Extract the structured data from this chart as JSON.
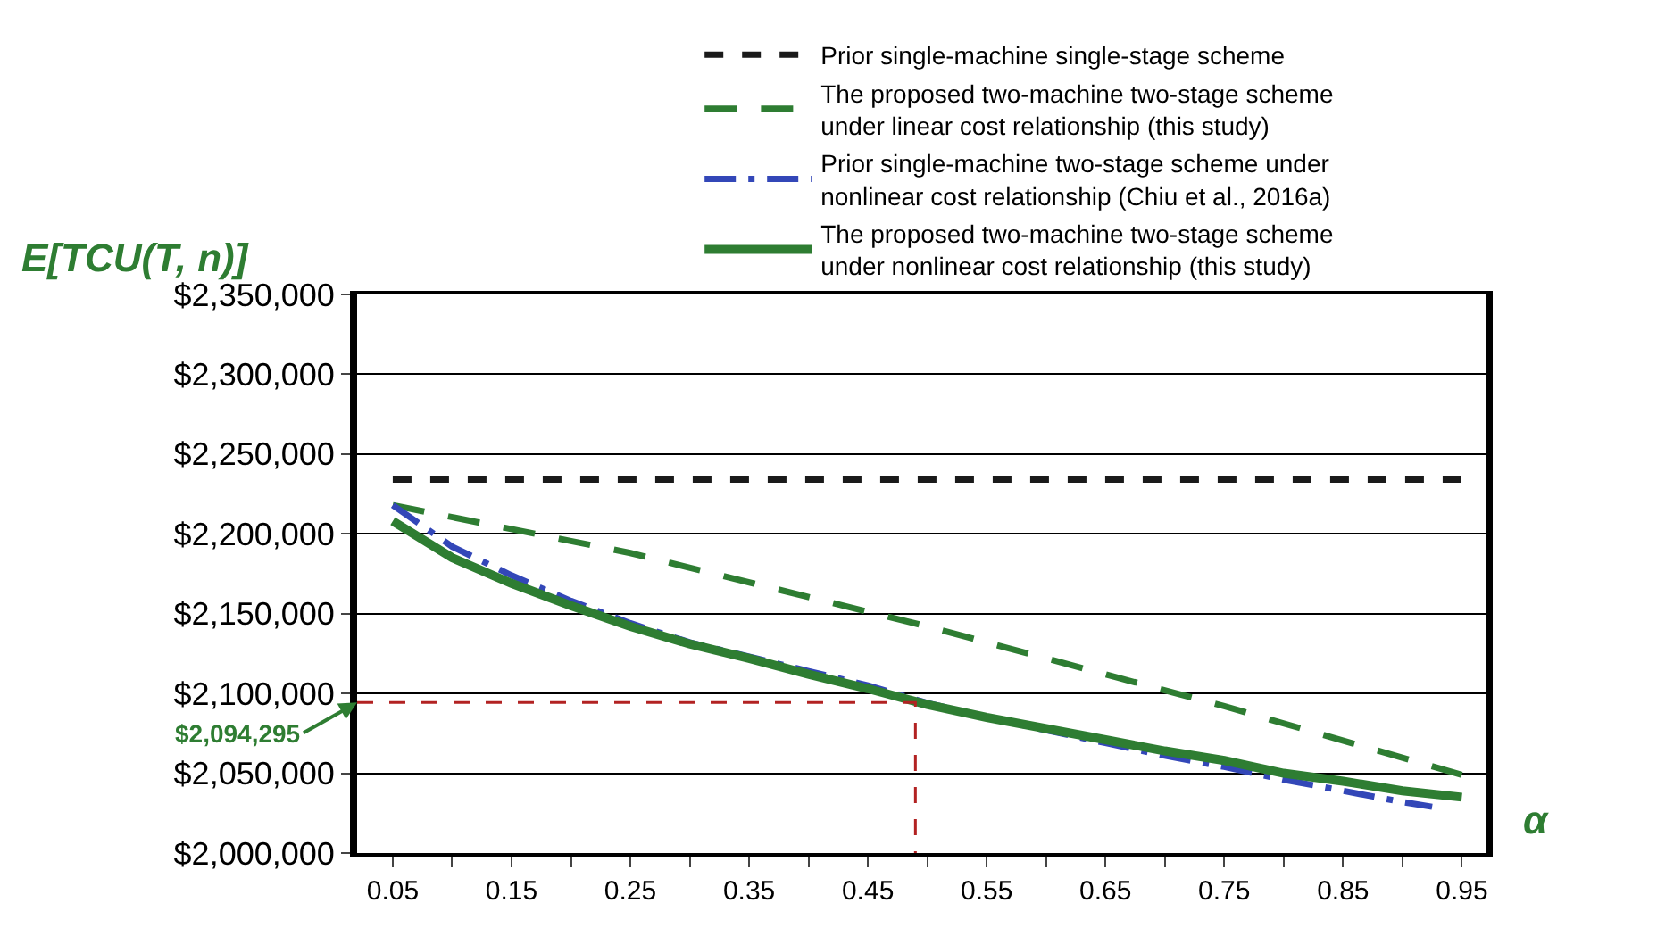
{
  "chart_data": {
    "type": "line",
    "ylabel": "E[TCU(T, n)]",
    "xlabel": "α",
    "x": [
      0.05,
      0.1,
      0.15,
      0.2,
      0.25,
      0.3,
      0.35,
      0.4,
      0.45,
      0.5,
      0.55,
      0.6,
      0.65,
      0.7,
      0.75,
      0.8,
      0.85,
      0.9,
      0.95
    ],
    "series": [
      {
        "name": "Prior single-machine single-stage scheme",
        "color": "#1a1a1a",
        "line_style": "dashed",
        "x": [
          0.05,
          0.95
        ],
        "values": [
          2234000,
          2234000
        ]
      },
      {
        "name": "The proposed two-machine two-stage scheme\nunder linear cost relationship (this study)",
        "color": "#2e7d32",
        "line_style": "longdash",
        "x": [
          0.05,
          0.25,
          0.5,
          0.75,
          0.95
        ],
        "values": [
          2218000,
          2188000,
          2142000,
          2092000,
          2049000
        ]
      },
      {
        "name": "Prior single-machine two-stage scheme under\nnonlinear cost relationship (Chiu et al., 2016a)",
        "color": "#3347b8",
        "line_style": "dashdot",
        "x": [
          0.05,
          0.1,
          0.15,
          0.2,
          0.25,
          0.3,
          0.35,
          0.4,
          0.45,
          0.5,
          0.55,
          0.6,
          0.65,
          0.7,
          0.75,
          0.8,
          0.85,
          0.9,
          0.925
        ],
        "values": [
          2218000,
          2192000,
          2174000,
          2158000,
          2144000,
          2132000,
          2123000,
          2114000,
          2105000,
          2094000,
          2085000,
          2077000,
          2069000,
          2061000,
          2054000,
          2046000,
          2039000,
          2032000,
          2029000
        ]
      },
      {
        "name": "The proposed two-machine two-stage scheme\nunder nonlinear cost relationship (this study)",
        "color": "#2e7d32",
        "line_style": "solid",
        "values": [
          2208000,
          2185000,
          2169000,
          2155000,
          2142000,
          2131000,
          2122000,
          2112000,
          2103000,
          2093000,
          2085000,
          2078000,
          2071000,
          2064000,
          2058000,
          2050000,
          2045000,
          2039000,
          2035000
        ]
      },
      {
        "color": "#b22222",
        "line_style": "dash",
        "x": [
          0.02,
          0.49,
          0.49
        ],
        "values": [
          2094295,
          2094295,
          2000000
        ]
      }
    ],
    "annotations": [
      {
        "text": "$2,094,295",
        "x": 0.02,
        "y": 2094295
      }
    ],
    "xlim": [
      0.02,
      0.97
    ],
    "xticks": [
      {
        "value": 0.05,
        "label": "0.05"
      },
      {
        "value": 0.1,
        "label": null
      },
      {
        "value": 0.15,
        "label": "0.15"
      },
      {
        "value": 0.2,
        "label": null
      },
      {
        "value": 0.25,
        "label": "0.25"
      },
      {
        "value": 0.3,
        "label": null
      },
      {
        "value": 0.35,
        "label": "0.35"
      },
      {
        "value": 0.4,
        "label": null
      },
      {
        "value": 0.45,
        "label": "0.45"
      },
      {
        "value": 0.5,
        "label": null
      },
      {
        "value": 0.55,
        "label": "0.55"
      },
      {
        "value": 0.6,
        "label": null
      },
      {
        "value": 0.65,
        "label": "0.65"
      },
      {
        "value": 0.7,
        "label": null
      },
      {
        "value": 0.75,
        "label": "0.75"
      },
      {
        "value": 0.8,
        "label": null
      },
      {
        "value": 0.85,
        "label": "0.85"
      },
      {
        "value": 0.9,
        "label": null
      },
      {
        "value": 0.95,
        "label": "0.95"
      }
    ],
    "ylim": [
      2000000,
      2350000
    ],
    "yticks": [
      {
        "value": 2000000,
        "label": "$2,000,000"
      },
      {
        "value": 2050000,
        "label": "$2,050,000"
      },
      {
        "value": 2100000,
        "label": "$2,100,000"
      },
      {
        "value": 2150000,
        "label": "$2,150,000"
      },
      {
        "value": 2200000,
        "label": "$2,200,000"
      },
      {
        "value": 2250000,
        "label": "$2,250,000"
      },
      {
        "value": 2300000,
        "label": "$2,300,000"
      },
      {
        "value": 2350000,
        "label": "$2,350,000"
      }
    ],
    "grid": "y",
    "legend": "top",
    "marker": "none"
  }
}
